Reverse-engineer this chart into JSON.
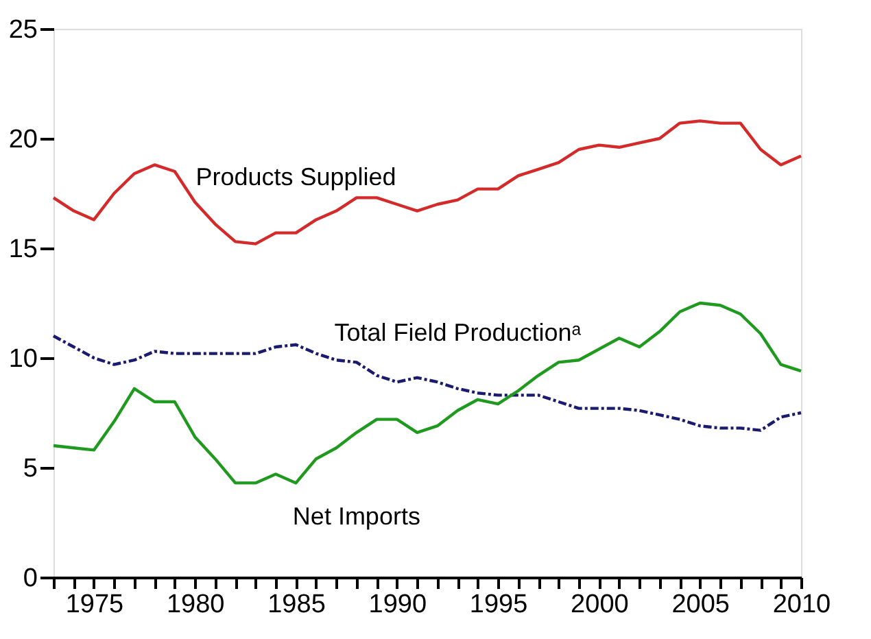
{
  "chart_data": {
    "type": "line",
    "x": [
      1973,
      1974,
      1975,
      1976,
      1977,
      1978,
      1979,
      1980,
      1981,
      1982,
      1983,
      1984,
      1985,
      1986,
      1987,
      1988,
      1989,
      1990,
      1991,
      1992,
      1993,
      1994,
      1995,
      1996,
      1997,
      1998,
      1999,
      2000,
      2001,
      2002,
      2003,
      2004,
      2005,
      2006,
      2007,
      2008,
      2009,
      2010
    ],
    "series": [
      {
        "name": "Products Supplied",
        "color": "#d42a2a",
        "line_style": "solid",
        "values": [
          17.3,
          16.7,
          16.3,
          17.5,
          18.4,
          18.8,
          18.5,
          17.1,
          16.1,
          15.3,
          15.2,
          15.7,
          15.7,
          16.3,
          16.7,
          17.3,
          17.3,
          17.0,
          16.7,
          17.0,
          17.2,
          17.7,
          17.7,
          18.3,
          18.6,
          18.9,
          19.5,
          19.7,
          19.6,
          19.8,
          20.0,
          20.7,
          20.8,
          20.7,
          20.7,
          19.5,
          18.8,
          19.2
        ]
      },
      {
        "name": "Total Field Productionᵃ",
        "color": "#1a1a6e",
        "line_style": "dashed",
        "values": [
          11.0,
          10.5,
          10.0,
          9.7,
          9.9,
          10.3,
          10.2,
          10.2,
          10.2,
          10.2,
          10.2,
          10.5,
          10.6,
          10.2,
          9.9,
          9.8,
          9.2,
          8.9,
          9.1,
          8.9,
          8.6,
          8.4,
          8.3,
          8.3,
          8.3,
          8.0,
          7.7,
          7.7,
          7.7,
          7.6,
          7.4,
          7.2,
          6.9,
          6.8,
          6.8,
          6.7,
          7.3,
          7.5
        ]
      },
      {
        "name": "Net Imports",
        "color": "#1f9a1f",
        "line_style": "solid",
        "values": [
          6.0,
          5.9,
          5.8,
          7.1,
          8.6,
          8.0,
          8.0,
          6.4,
          5.4,
          4.3,
          4.3,
          4.7,
          4.3,
          5.4,
          5.9,
          6.6,
          7.2,
          7.2,
          6.6,
          6.9,
          7.6,
          8.1,
          7.9,
          8.5,
          9.2,
          9.8,
          9.9,
          10.4,
          10.9,
          10.5,
          11.2,
          12.1,
          12.5,
          12.4,
          12.0,
          11.1,
          9.7,
          9.4
        ]
      }
    ],
    "xlim": [
      1973,
      2010
    ],
    "xticks": [
      {
        "value": 1973,
        "label": null
      },
      {
        "value": 1974,
        "label": null
      },
      1975,
      {
        "value": 1976,
        "label": null
      },
      {
        "value": 1977,
        "label": null
      },
      {
        "value": 1978,
        "label": null
      },
      {
        "value": 1979,
        "label": null
      },
      1980,
      {
        "value": 1981,
        "label": null
      },
      {
        "value": 1982,
        "label": null
      },
      {
        "value": 1983,
        "label": null
      },
      {
        "value": 1984,
        "label": null
      },
      1985,
      {
        "value": 1986,
        "label": null
      },
      {
        "value": 1987,
        "label": null
      },
      {
        "value": 1988,
        "label": null
      },
      {
        "value": 1989,
        "label": null
      },
      1990,
      {
        "value": 1991,
        "label": null
      },
      {
        "value": 1992,
        "label": null
      },
      {
        "value": 1993,
        "label": null
      },
      {
        "value": 1994,
        "label": null
      },
      1995,
      {
        "value": 1996,
        "label": null
      },
      {
        "value": 1997,
        "label": null
      },
      {
        "value": 1998,
        "label": null
      },
      {
        "value": 1999,
        "label": null
      },
      2000,
      {
        "value": 2001,
        "label": null
      },
      {
        "value": 2002,
        "label": null
      },
      {
        "value": 2003,
        "label": null
      },
      {
        "value": 2004,
        "label": null
      },
      2005,
      {
        "value": 2006,
        "label": null
      },
      {
        "value": 2007,
        "label": null
      },
      {
        "value": 2008,
        "label": null
      },
      {
        "value": 2009,
        "label": null
      },
      2010
    ],
    "ylim": [
      0,
      25
    ],
    "yticks": [
      0,
      5,
      10,
      15,
      20,
      25
    ],
    "grid": false,
    "legend": false
  }
}
